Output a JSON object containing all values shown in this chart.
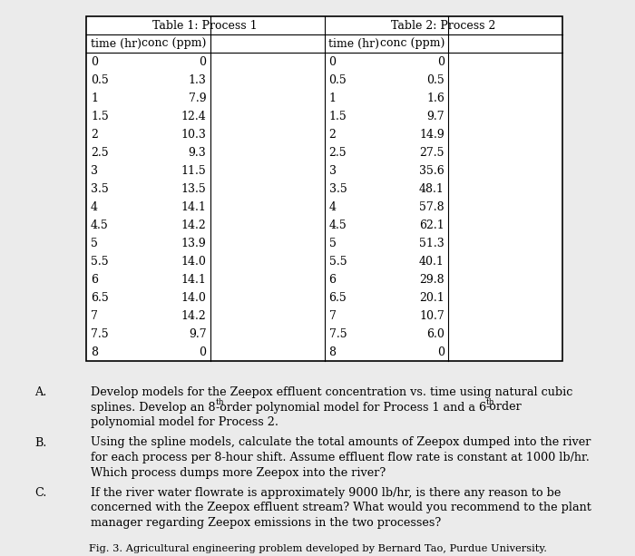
{
  "table1_header": "Table 1: Process 1",
  "table2_header": "Table 2: Process 2",
  "col_headers": [
    "time (hr)",
    "conc (ppm)",
    "time (hr)",
    "conc (ppm)"
  ],
  "time_strs": [
    "0",
    "0.5",
    "1",
    "1.5",
    "2",
    "2.5",
    "3",
    "3.5",
    "4",
    "4.5",
    "5",
    "5.5",
    "6",
    "6.5",
    "7",
    "7.5",
    "8"
  ],
  "conc1_strs": [
    "0",
    "1.3",
    "7.9",
    "12.4",
    "10.3",
    "9.3",
    "11.5",
    "13.5",
    "14.1",
    "14.2",
    "13.9",
    "14.0",
    "14.1",
    "14.0",
    "14.2",
    "9.7",
    "0"
  ],
  "conc2_strs": [
    "0",
    "0.5",
    "1.6",
    "9.7",
    "14.9",
    "27.5",
    "35.6",
    "48.1",
    "57.8",
    "62.1",
    "51.3",
    "40.1",
    "29.8",
    "20.1",
    "10.7",
    "6.0",
    "0"
  ],
  "bg_color": "#ebebeb",
  "table_bg": "#ffffff",
  "font_size": 9.0,
  "q_font_size": 9.2,
  "caption": "Fig. 3. Agricultural engineering problem developed by Bernard Tao, Purdue University.",
  "q_labels": [
    "A.",
    "B.",
    "C."
  ],
  "q_lines": [
    [
      "Develop models for the Zeepox effluent concentration vs. time using natural cubic",
      "splines. Develop an 8th-order polynomial model for Process 1 and a 6th-order",
      "polynomial model for Process 2."
    ],
    [
      "Using the spline models, calculate the total amounts of Zeepox dumped into the river",
      "for each process per 8-hour shift. Assume effluent flow rate is constant at 1000 lb/hr.",
      "Which process dumps more Zeepox into the river?"
    ],
    [
      "If the river water flowrate is approximately 9000 lb/hr, is there any reason to be",
      "concerned with the Zeepox effluent stream? What would you recommend to the plant",
      "manager regarding Zeepox emissions in the two processes?"
    ]
  ],
  "q_superscripts": [
    [
      [
        1,
        "th",
        39
      ],
      [
        1,
        "th",
        80
      ]
    ],
    [],
    []
  ]
}
